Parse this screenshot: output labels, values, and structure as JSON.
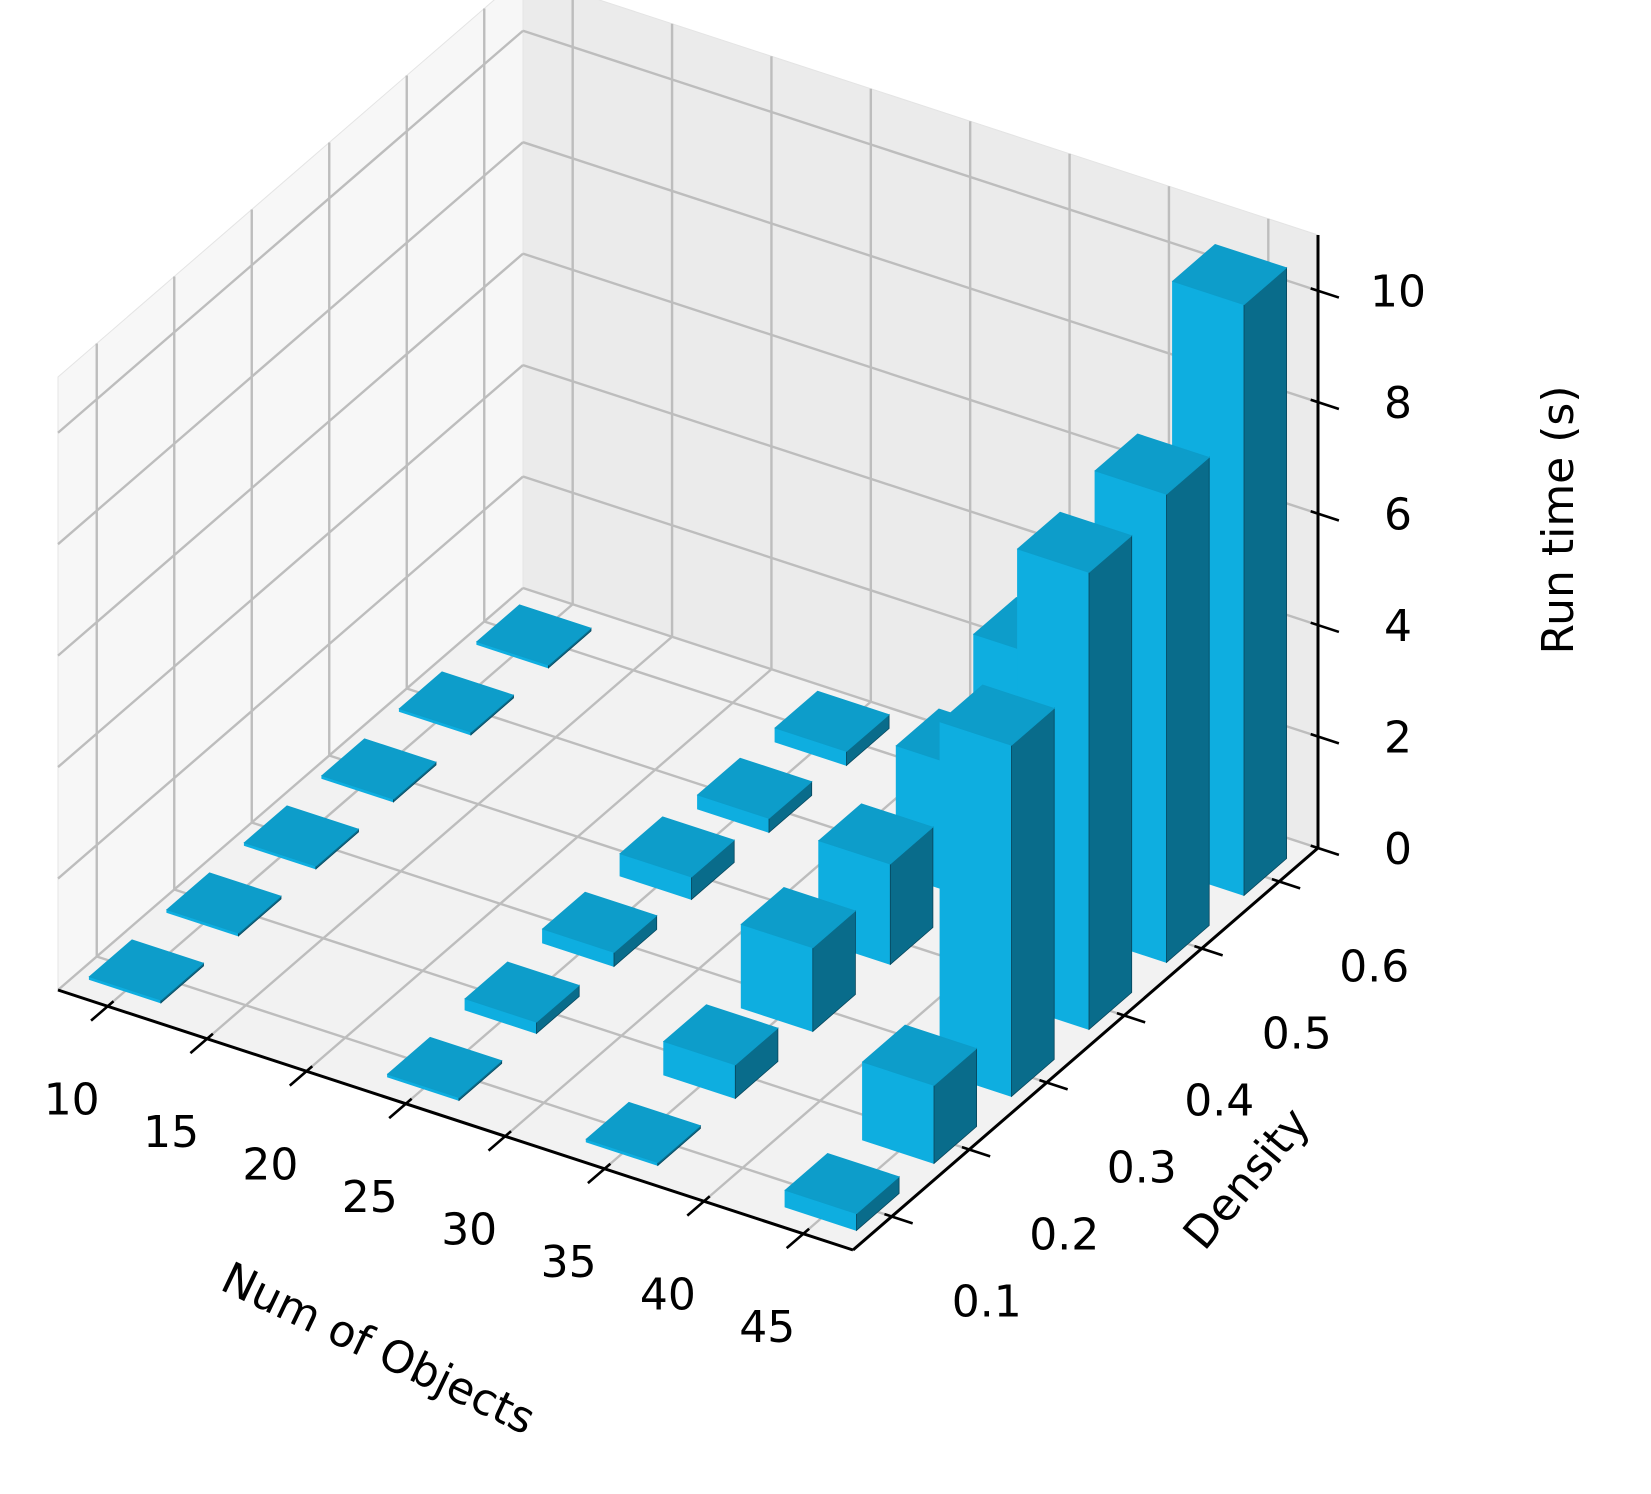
{
  "chart_data": {
    "type": "bar3d",
    "title": "",
    "xlabel": "Num of Objects",
    "ylabel": "Density",
    "zlabel": "Run time (s)",
    "x_ticks": [
      "10",
      "15",
      "20",
      "25",
      "30",
      "35",
      "40",
      "45"
    ],
    "y_ticks": [
      "0.1",
      "0.2",
      "0.3",
      "0.4",
      "0.5",
      "0.6"
    ],
    "z_ticks": [
      "0",
      "2",
      "4",
      "6",
      "8",
      "10"
    ],
    "xlim": [
      7.5,
      47.5
    ],
    "ylim": [
      0.05,
      0.65
    ],
    "zlim": [
      0,
      11
    ],
    "grid": true,
    "bar_color": "#0eaee0",
    "bars": [
      {
        "x": 10,
        "y": 0.1,
        "z": 0.05
      },
      {
        "x": 10,
        "y": 0.2,
        "z": 0.05
      },
      {
        "x": 10,
        "y": 0.3,
        "z": 0.05
      },
      {
        "x": 10,
        "y": 0.4,
        "z": 0.05
      },
      {
        "x": 10,
        "y": 0.5,
        "z": 0.05
      },
      {
        "x": 10,
        "y": 0.6,
        "z": 0.05
      },
      {
        "x": 25,
        "y": 0.1,
        "z": 0.05
      },
      {
        "x": 25,
        "y": 0.2,
        "z": 0.2
      },
      {
        "x": 25,
        "y": 0.3,
        "z": 0.25
      },
      {
        "x": 25,
        "y": 0.4,
        "z": 0.4
      },
      {
        "x": 25,
        "y": 0.5,
        "z": 0.25
      },
      {
        "x": 25,
        "y": 0.6,
        "z": 0.25
      },
      {
        "x": 35,
        "y": 0.1,
        "z": 0.05
      },
      {
        "x": 35,
        "y": 0.2,
        "z": 0.6
      },
      {
        "x": 35,
        "y": 0.3,
        "z": 1.5
      },
      {
        "x": 35,
        "y": 0.4,
        "z": 1.8
      },
      {
        "x": 35,
        "y": 0.5,
        "z": 2.3
      },
      {
        "x": 35,
        "y": 0.6,
        "z": 3.1
      },
      {
        "x": 45,
        "y": 0.1,
        "z": 0.3
      },
      {
        "x": 45,
        "y": 0.2,
        "z": 1.4
      },
      {
        "x": 45,
        "y": 0.3,
        "z": 6.3
      },
      {
        "x": 45,
        "y": 0.4,
        "z": 8.2
      },
      {
        "x": 45,
        "y": 0.5,
        "z": 8.4
      },
      {
        "x": 45,
        "y": 0.6,
        "z": 10.6
      }
    ]
  }
}
